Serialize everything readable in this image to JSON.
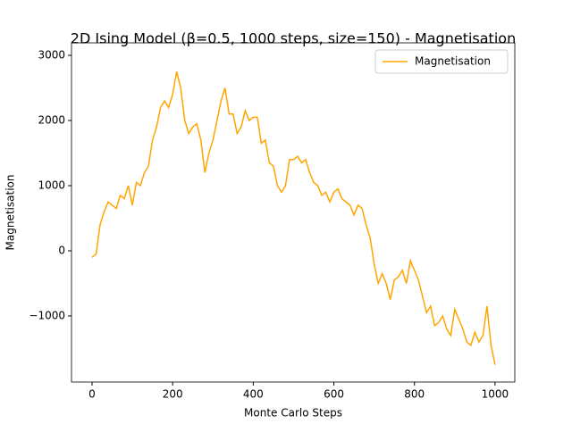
{
  "chart_data": {
    "type": "line",
    "title": "2D Ising Model (β=0.5, 1000 steps, size=150) - Magnetisation",
    "xlabel": "Monte Carlo Steps",
    "ylabel": "Magnetisation",
    "x": [
      0,
      10,
      20,
      30,
      40,
      50,
      60,
      70,
      80,
      90,
      100,
      110,
      120,
      130,
      140,
      150,
      160,
      170,
      180,
      190,
      200,
      210,
      220,
      230,
      240,
      250,
      260,
      270,
      280,
      290,
      300,
      310,
      320,
      330,
      340,
      350,
      360,
      370,
      380,
      390,
      400,
      410,
      420,
      430,
      440,
      450,
      460,
      470,
      480,
      490,
      500,
      510,
      520,
      530,
      540,
      550,
      560,
      570,
      580,
      590,
      600,
      610,
      620,
      630,
      640,
      650,
      660,
      670,
      680,
      690,
      700,
      710,
      720,
      730,
      740,
      750,
      760,
      770,
      780,
      790,
      800,
      810,
      820,
      830,
      840,
      850,
      860,
      870,
      880,
      890,
      900,
      910,
      920,
      930,
      940,
      950,
      960,
      970,
      980,
      990,
      1000
    ],
    "series": [
      {
        "name": "Magnetisation",
        "color": "#ffa500",
        "values": [
          -100,
          -50,
          400,
          600,
          750,
          700,
          650,
          850,
          800,
          1000,
          700,
          1050,
          1000,
          1200,
          1300,
          1700,
          1900,
          2200,
          2300,
          2200,
          2400,
          2750,
          2500,
          2000,
          1800,
          1900,
          1950,
          1700,
          1200,
          1500,
          1700,
          2000,
          2300,
          2500,
          2100,
          2100,
          1800,
          1900,
          2150,
          2000,
          2050,
          2050,
          1650,
          1700,
          1350,
          1300,
          1000,
          900,
          1000,
          1400,
          1400,
          1450,
          1350,
          1400,
          1200,
          1050,
          1000,
          850,
          900,
          750,
          900,
          950,
          800,
          750,
          700,
          550,
          700,
          650,
          400,
          200,
          -200,
          -500,
          -350,
          -500,
          -750,
          -450,
          -400,
          -300,
          -500,
          -150,
          -300,
          -450,
          -700,
          -950,
          -850,
          -1150,
          -1100,
          -1000,
          -1200,
          -1300,
          -900,
          -1050,
          -1200,
          -1400,
          -1450,
          -1250,
          -1400,
          -1300,
          -850,
          -1450,
          -1750
        ]
      }
    ],
    "xlim": [
      -51,
      1049
    ],
    "ylim": [
      -2014,
      3192
    ],
    "xticks": [
      0,
      200,
      400,
      600,
      800,
      1000
    ],
    "yticks": [
      {
        "value": -1000,
        "label": "−1000"
      },
      0,
      1000,
      2000,
      3000
    ],
    "legend": "upper right"
  }
}
